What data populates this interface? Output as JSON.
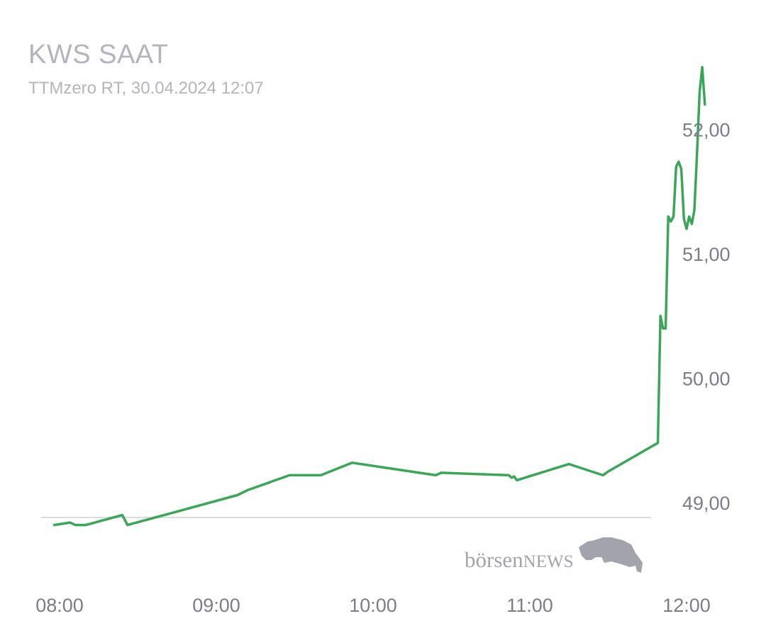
{
  "header": {
    "title": "KWS SAAT",
    "subtitle": "TTMzero RT, 30.04.2024 12:07"
  },
  "watermark": {
    "brand_lower": "börsen",
    "brand_upper": "NEWS",
    "icon": "bull-icon"
  },
  "colors": {
    "line": "#3aa657",
    "reference_line": "#dcdcdc",
    "tick_text": "#7c7c8b",
    "title_text": "#b4b4bf",
    "watermark": "#a3a3ae"
  },
  "chart_data": {
    "type": "line",
    "x_unit": "time of day",
    "xlim": [
      "08:00",
      "12:10"
    ],
    "ylim": [
      48.5,
      52.5
    ],
    "reference_line": 48.88,
    "grid": false,
    "legend": "none",
    "x_ticks": [
      "08:00",
      "09:00",
      "10:00",
      "11:00",
      "12:00"
    ],
    "y_ticks": [
      "49,00",
      "50,00",
      "51,00",
      "52,00"
    ],
    "y_tick_values": [
      49.0,
      50.0,
      51.0,
      52.0
    ],
    "series": [
      {
        "points": [
          [
            "07:58",
            48.82
          ],
          [
            "08:04",
            48.84
          ],
          [
            "08:06",
            48.82
          ],
          [
            "08:10",
            48.82
          ],
          [
            "08:24",
            48.9
          ],
          [
            "08:26",
            48.82
          ],
          [
            "09:08",
            49.06
          ],
          [
            "09:12",
            49.1
          ],
          [
            "09:28",
            49.22
          ],
          [
            "09:40",
            49.22
          ],
          [
            "09:52",
            49.32
          ],
          [
            "10:24",
            49.22
          ],
          [
            "10:26",
            49.24
          ],
          [
            "10:52",
            49.22
          ],
          [
            "10:53",
            49.2
          ],
          [
            "10:54",
            49.21
          ],
          [
            "10:55",
            49.18
          ],
          [
            "11:15",
            49.31
          ],
          [
            "11:28",
            49.22
          ],
          [
            "11:30",
            49.25
          ],
          [
            "11:49",
            49.48
          ],
          [
            "11:50",
            50.5
          ],
          [
            "11:51",
            50.4
          ],
          [
            "11:52",
            50.4
          ],
          [
            "11:53",
            51.3
          ],
          [
            "11:54",
            51.26
          ],
          [
            "11:55",
            51.3
          ],
          [
            "11:56",
            51.7
          ],
          [
            "11:57",
            51.74
          ],
          [
            "11:58",
            51.68
          ],
          [
            "11:59",
            51.28
          ],
          [
            "12:00",
            51.2
          ],
          [
            "12:01",
            51.3
          ],
          [
            "12:02",
            51.24
          ],
          [
            "12:03",
            51.35
          ],
          [
            "12:04",
            51.8
          ],
          [
            "12:05",
            52.3
          ],
          [
            "12:06",
            52.5
          ],
          [
            "12:07",
            52.2
          ]
        ]
      }
    ]
  }
}
